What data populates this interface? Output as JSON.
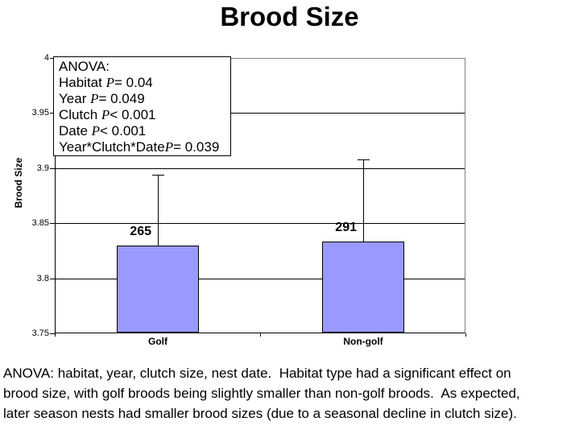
{
  "title": "Brood Size",
  "anova_box": {
    "lines": [
      {
        "pre": "ANOVA:",
        "p": "",
        "post": ""
      },
      {
        "pre": "Habitat ",
        "p": "P",
        "post": "= 0.04"
      },
      {
        "pre": "Year ",
        "p": "P",
        "post": "= 0.049"
      },
      {
        "pre": "Clutch ",
        "p": "P",
        "post": "< 0.001"
      },
      {
        "pre": "Date ",
        "p": "P",
        "post": "< 0.001"
      },
      {
        "pre": "Year*Clutch*Date",
        "p": "P",
        "post": "= 0.039"
      }
    ]
  },
  "caption": {
    "lines": [
      "ANOVA: habitat, year, clutch size, nest date.  Habitat type had a significant effect on",
      "brood size, with golf broods being slightly smaller than non-golf broods.  As expected,",
      "later season nests had smaller brood sizes (due to a seasonal decline in clutch size)."
    ]
  },
  "chart_data": {
    "type": "bar",
    "title": "Brood Size",
    "ylabel": "Brood Size",
    "xlabel": "",
    "categories": [
      "Golf",
      "Non-golf"
    ],
    "values": [
      3.83,
      3.833
    ],
    "error_bar_tops": [
      3.894,
      3.908
    ],
    "bar_labels": [
      "265",
      "291"
    ],
    "ylim": [
      3.75,
      4
    ],
    "yticks": [
      4,
      3.95,
      3.9,
      3.85,
      3.8,
      3.75
    ],
    "ytick_labels": [
      "4",
      "3.95",
      "3.9",
      "3.85",
      "3.8",
      "3.75"
    ],
    "grid": true,
    "legend": "none",
    "bar_fill": "#9999ff",
    "bar_border": "#000000"
  }
}
